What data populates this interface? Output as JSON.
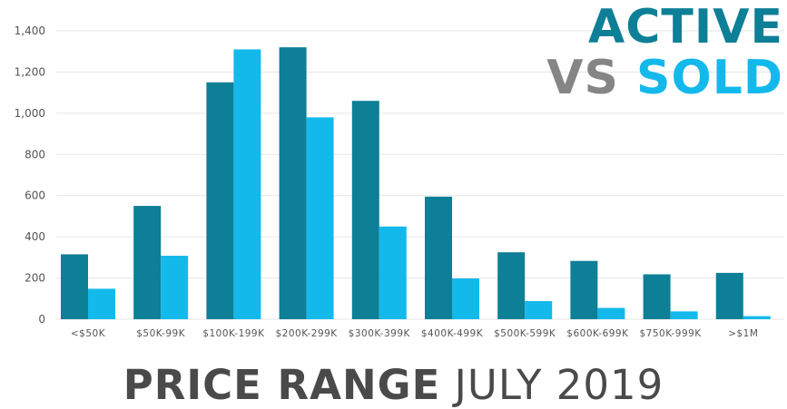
{
  "chart_data": {
    "type": "bar",
    "title": "PRICE RANGE JULY 2019",
    "title_bold": "PRICE RANGE",
    "title_light": "JULY 2019",
    "categories": [
      "<$50K",
      "$50K-99K",
      "$100K-199K",
      "$200K-299K",
      "$300K-399K",
      "$400K-499K",
      "$500K-599K",
      "$600K-699K",
      "$750K-999K",
      ">$1M"
    ],
    "series": [
      {
        "name": "ACTIVE",
        "color": "#0d7f96",
        "values": [
          315,
          550,
          1150,
          1320,
          1060,
          595,
          325,
          283,
          218,
          225
        ]
      },
      {
        "name": "SOLD",
        "color": "#14b9eb",
        "values": [
          148,
          308,
          1310,
          980,
          450,
          198,
          88,
          55,
          38,
          15
        ]
      }
    ],
    "ylim": [
      0,
      1400
    ],
    "yticks": [
      0,
      200,
      400,
      600,
      800,
      1000,
      1200,
      1400
    ],
    "ytick_labels": [
      "0",
      "200",
      "400",
      "600",
      "800",
      "1,000",
      "1,200",
      "1,400"
    ],
    "grid": true,
    "legend_position": "top-right",
    "legend": {
      "line1": "ACTIVE",
      "vs": "VS",
      "sold": "SOLD"
    }
  }
}
